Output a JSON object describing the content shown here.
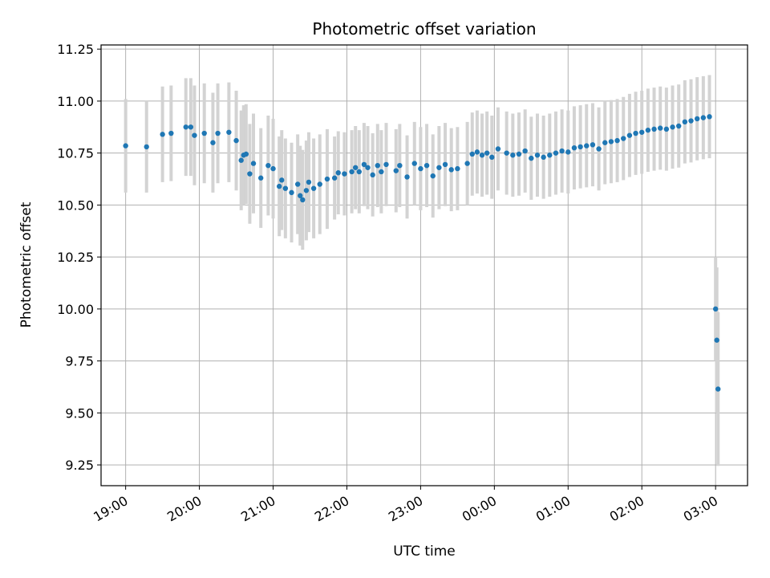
{
  "chart_data": {
    "type": "scatter",
    "title": "Photometric offset variation",
    "xlabel": "UTC time",
    "ylabel": "Photometric offset",
    "x_is_time": true,
    "xlim": [
      "18:40",
      "03:26"
    ],
    "ylim": [
      9.15,
      11.27
    ],
    "xticks": [
      "19:00",
      "20:00",
      "21:00",
      "22:00",
      "23:00",
      "00:00",
      "01:00",
      "02:00",
      "03:00"
    ],
    "yticks": [
      "9.25",
      "9.50",
      "9.75",
      "10.00",
      "10.25",
      "10.50",
      "10.75",
      "11.00",
      "11.25"
    ],
    "grid": true,
    "legend": "none",
    "colors": {
      "point": "#1f77b4",
      "errorbar": "#d3d3d3",
      "grid": "#b0b0b0"
    },
    "series": [
      {
        "points": [
          {
            "x": "19:00",
            "y": 10.785,
            "err": 0.225
          },
          {
            "x": "19:17",
            "y": 10.78,
            "err": 0.22
          },
          {
            "x": "19:30",
            "y": 10.84,
            "err": 0.23
          },
          {
            "x": "19:37",
            "y": 10.845,
            "err": 0.23
          },
          {
            "x": "19:49",
            "y": 10.875,
            "err": 0.235
          },
          {
            "x": "19:53",
            "y": 10.875,
            "err": 0.235
          },
          {
            "x": "19:56",
            "y": 10.835,
            "err": 0.24
          },
          {
            "x": "20:04",
            "y": 10.845,
            "err": 0.24
          },
          {
            "x": "20:11",
            "y": 10.8,
            "err": 0.24
          },
          {
            "x": "20:15",
            "y": 10.845,
            "err": 0.24
          },
          {
            "x": "20:24",
            "y": 10.85,
            "err": 0.24
          },
          {
            "x": "20:30",
            "y": 10.81,
            "err": 0.24
          },
          {
            "x": "20:34",
            "y": 10.715,
            "err": 0.24
          },
          {
            "x": "20:36",
            "y": 10.74,
            "err": 0.24
          },
          {
            "x": "20:38",
            "y": 10.745,
            "err": 0.24
          },
          {
            "x": "20:41",
            "y": 10.65,
            "err": 0.24
          },
          {
            "x": "20:44",
            "y": 10.7,
            "err": 0.24
          },
          {
            "x": "20:50",
            "y": 10.63,
            "err": 0.24
          },
          {
            "x": "20:56",
            "y": 10.69,
            "err": 0.24
          },
          {
            "x": "21:00",
            "y": 10.675,
            "err": 0.24
          },
          {
            "x": "21:05",
            "y": 10.59,
            "err": 0.24
          },
          {
            "x": "21:07",
            "y": 10.62,
            "err": 0.24
          },
          {
            "x": "21:10",
            "y": 10.58,
            "err": 0.24
          },
          {
            "x": "21:15",
            "y": 10.56,
            "err": 0.24
          },
          {
            "x": "21:20",
            "y": 10.6,
            "err": 0.24
          },
          {
            "x": "21:22",
            "y": 10.545,
            "err": 0.24
          },
          {
            "x": "21:24",
            "y": 10.525,
            "err": 0.24
          },
          {
            "x": "21:27",
            "y": 10.57,
            "err": 0.24
          },
          {
            "x": "21:29",
            "y": 10.61,
            "err": 0.24
          },
          {
            "x": "21:33",
            "y": 10.58,
            "err": 0.24
          },
          {
            "x": "21:38",
            "y": 10.6,
            "err": 0.24
          },
          {
            "x": "21:44",
            "y": 10.625,
            "err": 0.24
          },
          {
            "x": "21:50",
            "y": 10.63,
            "err": 0.2
          },
          {
            "x": "21:53",
            "y": 10.655,
            "err": 0.2
          },
          {
            "x": "21:58",
            "y": 10.65,
            "err": 0.2
          },
          {
            "x": "22:04",
            "y": 10.66,
            "err": 0.2
          },
          {
            "x": "22:07",
            "y": 10.68,
            "err": 0.2
          },
          {
            "x": "22:10",
            "y": 10.66,
            "err": 0.2
          },
          {
            "x": "22:14",
            "y": 10.695,
            "err": 0.2
          },
          {
            "x": "22:17",
            "y": 10.68,
            "err": 0.2
          },
          {
            "x": "22:21",
            "y": 10.645,
            "err": 0.2
          },
          {
            "x": "22:25",
            "y": 10.69,
            "err": 0.2
          },
          {
            "x": "22:28",
            "y": 10.66,
            "err": 0.2
          },
          {
            "x": "22:32",
            "y": 10.695,
            "err": 0.2
          },
          {
            "x": "22:40",
            "y": 10.665,
            "err": 0.2
          },
          {
            "x": "22:43",
            "y": 10.69,
            "err": 0.2
          },
          {
            "x": "22:49",
            "y": 10.635,
            "err": 0.2
          },
          {
            "x": "22:55",
            "y": 10.7,
            "err": 0.2
          },
          {
            "x": "23:00",
            "y": 10.675,
            "err": 0.2
          },
          {
            "x": "23:05",
            "y": 10.69,
            "err": 0.2
          },
          {
            "x": "23:10",
            "y": 10.64,
            "err": 0.2
          },
          {
            "x": "23:15",
            "y": 10.68,
            "err": 0.2
          },
          {
            "x": "23:20",
            "y": 10.695,
            "err": 0.2
          },
          {
            "x": "23:25",
            "y": 10.67,
            "err": 0.2
          },
          {
            "x": "23:30",
            "y": 10.675,
            "err": 0.2
          },
          {
            "x": "23:38",
            "y": 10.7,
            "err": 0.2
          },
          {
            "x": "23:42",
            "y": 10.745,
            "err": 0.2
          },
          {
            "x": "23:46",
            "y": 10.755,
            "err": 0.2
          },
          {
            "x": "23:50",
            "y": 10.74,
            "err": 0.2
          },
          {
            "x": "23:54",
            "y": 10.75,
            "err": 0.2
          },
          {
            "x": "23:58",
            "y": 10.73,
            "err": 0.2
          },
          {
            "x": "00:03",
            "y": 10.77,
            "err": 0.2
          },
          {
            "x": "00:10",
            "y": 10.75,
            "err": 0.2
          },
          {
            "x": "00:15",
            "y": 10.74,
            "err": 0.2
          },
          {
            "x": "00:20",
            "y": 10.745,
            "err": 0.2
          },
          {
            "x": "00:25",
            "y": 10.76,
            "err": 0.2
          },
          {
            "x": "00:30",
            "y": 10.725,
            "err": 0.2
          },
          {
            "x": "00:35",
            "y": 10.74,
            "err": 0.2
          },
          {
            "x": "00:40",
            "y": 10.73,
            "err": 0.2
          },
          {
            "x": "00:45",
            "y": 10.74,
            "err": 0.2
          },
          {
            "x": "00:50",
            "y": 10.75,
            "err": 0.2
          },
          {
            "x": "00:55",
            "y": 10.76,
            "err": 0.2
          },
          {
            "x": "01:00",
            "y": 10.755,
            "err": 0.2
          },
          {
            "x": "01:05",
            "y": 10.775,
            "err": 0.2
          },
          {
            "x": "01:10",
            "y": 10.78,
            "err": 0.2
          },
          {
            "x": "01:15",
            "y": 10.785,
            "err": 0.2
          },
          {
            "x": "01:20",
            "y": 10.79,
            "err": 0.2
          },
          {
            "x": "01:25",
            "y": 10.77,
            "err": 0.2
          },
          {
            "x": "01:30",
            "y": 10.8,
            "err": 0.2
          },
          {
            "x": "01:35",
            "y": 10.805,
            "err": 0.2
          },
          {
            "x": "01:40",
            "y": 10.81,
            "err": 0.2
          },
          {
            "x": "01:45",
            "y": 10.82,
            "err": 0.2
          },
          {
            "x": "01:50",
            "y": 10.835,
            "err": 0.2
          },
          {
            "x": "01:55",
            "y": 10.845,
            "err": 0.2
          },
          {
            "x": "02:00",
            "y": 10.85,
            "err": 0.2
          },
          {
            "x": "02:05",
            "y": 10.86,
            "err": 0.2
          },
          {
            "x": "02:10",
            "y": 10.865,
            "err": 0.2
          },
          {
            "x": "02:15",
            "y": 10.87,
            "err": 0.2
          },
          {
            "x": "02:20",
            "y": 10.865,
            "err": 0.2
          },
          {
            "x": "02:25",
            "y": 10.875,
            "err": 0.2
          },
          {
            "x": "02:30",
            "y": 10.88,
            "err": 0.2
          },
          {
            "x": "02:35",
            "y": 10.9,
            "err": 0.2
          },
          {
            "x": "02:40",
            "y": 10.905,
            "err": 0.2
          },
          {
            "x": "02:45",
            "y": 10.915,
            "err": 0.2
          },
          {
            "x": "02:50",
            "y": 10.92,
            "err": 0.2
          },
          {
            "x": "02:55",
            "y": 10.925,
            "err": 0.2
          },
          {
            "x": "03:00",
            "y": 10.0,
            "err": 0.25
          },
          {
            "x": "03:01",
            "y": 9.85,
            "err": 0.35
          },
          {
            "x": "03:02",
            "y": 9.615,
            "err": 0.37
          }
        ]
      }
    ]
  }
}
